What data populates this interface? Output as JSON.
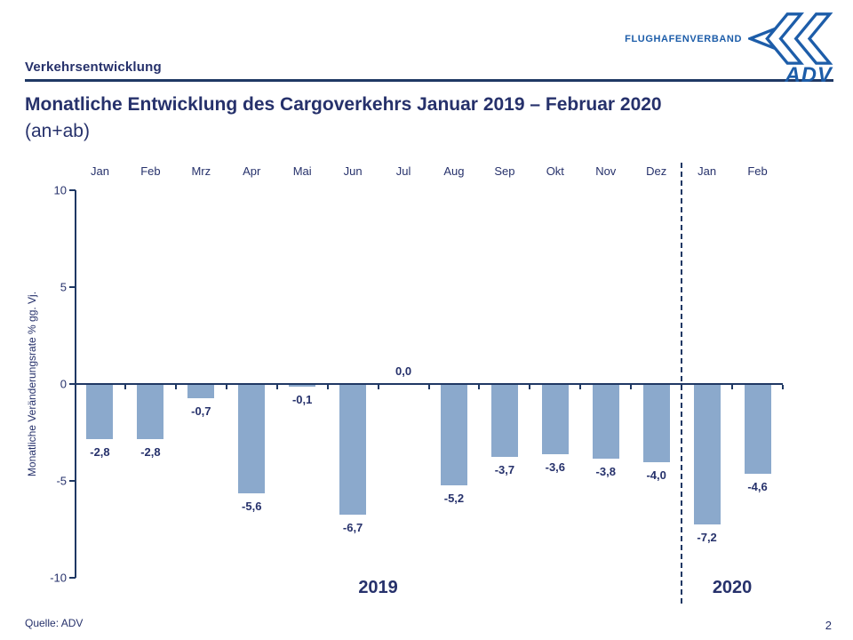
{
  "page": {
    "kicker": "Verkehrsentwicklung",
    "title_line1": "Monatliche Entwicklung des Cargoverkehrs Januar 2019 – Februar 2020",
    "title_line2": "(an+ab)",
    "source": "Quelle: ADV",
    "page_number": "2",
    "text_color": "#26316b"
  },
  "logo": {
    "wordmark": "FLUGHAFENVERBAND",
    "acronym": "ADV",
    "brand_color": "#1d5da9"
  },
  "chart_data": {
    "type": "bar",
    "categories": [
      "Jan",
      "Feb",
      "Mrz",
      "Apr",
      "Mai",
      "Jun",
      "Jul",
      "Aug",
      "Sep",
      "Okt",
      "Nov",
      "Dez",
      "Jan",
      "Feb"
    ],
    "values": [
      -2.8,
      -2.8,
      -0.7,
      -5.6,
      -0.1,
      -6.7,
      0.0,
      -5.2,
      -3.7,
      -3.6,
      -3.8,
      -4.0,
      -7.2,
      -4.6
    ],
    "value_labels": [
      "-2,8",
      "-2,8",
      "-0,7",
      "-5,6",
      "-0,1",
      "-6,7",
      "0,0",
      "-5,2",
      "-3,7",
      "-3,6",
      "-3,8",
      "-4,0",
      "-7,2",
      "-4,6"
    ],
    "title": "",
    "xlabel": "",
    "ylabel": "Monatliche Veränderungsrate % gg. Vj.",
    "ylim": [
      -10,
      10
    ],
    "yticks": [
      10,
      5,
      0,
      -5,
      -10
    ],
    "ytick_labels": [
      "10",
      "5",
      "0",
      "-5",
      "-10"
    ],
    "grid": false,
    "legend": null,
    "category_axis_position": "top",
    "separator_after_index": 11,
    "year_groups": [
      {
        "label": "2019",
        "from": 0,
        "to": 11
      },
      {
        "label": "2020",
        "from": 12,
        "to": 13
      }
    ],
    "bar_color": "#8ba9cc",
    "axis_color": "#1f3864"
  }
}
